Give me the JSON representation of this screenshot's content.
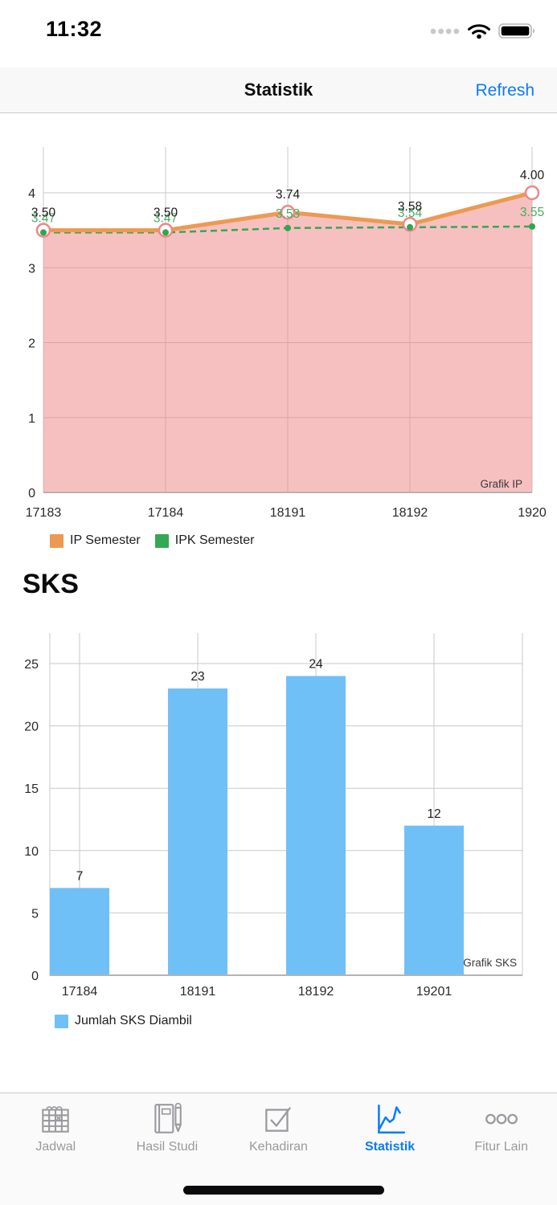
{
  "status_bar": {
    "time": "11:32"
  },
  "nav_bar": {
    "title": "Statistik",
    "refresh_label": "Refresh"
  },
  "sections": {
    "sks_heading": "SKS"
  },
  "colors": {
    "accent_blue": "#0A7AFF",
    "tab_inactive": "#9A9A9F",
    "gridline": "#C9C9C9",
    "axis_line": "#B3B3B3",
    "tick_text": "#2A2A2C",
    "value_label": "#1B1B1D",
    "watermark_text": "#39393B"
  },
  "chart_data": [
    {
      "type": "line",
      "name": "grafik-ip",
      "categories": [
        "17183",
        "17184",
        "18191",
        "18192",
        "1920"
      ],
      "series": [
        {
          "name": "IP Semester",
          "color": "#EC9A52",
          "line_style": "solid",
          "point_style": "ring",
          "ring_stroke": "#EE8787",
          "area_fill": "rgba(240,129,129,0.5)",
          "values": [
            3.5,
            3.5,
            3.74,
            3.58,
            4.0
          ],
          "value_labels": [
            "3.50",
            "3.50",
            "3.74",
            "3.58",
            "4.00"
          ],
          "label_color": "#1B1B1D"
        },
        {
          "name": "IPK Semester",
          "color": "#34A853",
          "line_style": "dashed",
          "point_style": "dot",
          "dot_color": "#2FA750",
          "values": [
            3.47,
            3.47,
            3.53,
            3.54,
            3.55
          ],
          "value_labels": [
            "3.47",
            "3.47",
            "3.53",
            "3.54",
            "3.55"
          ],
          "label_color": "#43AE60"
        }
      ],
      "yticks": [
        0,
        1,
        2,
        3,
        4
      ],
      "ylim": [
        0,
        4.6
      ],
      "grid": true,
      "legend_position": "bottom",
      "watermark": "Grafik IP"
    },
    {
      "type": "bar",
      "name": "grafik-sks",
      "categories": [
        "17184",
        "18191",
        "18192",
        "19201"
      ],
      "series": [
        {
          "name": "Jumlah SKS Diambil",
          "color": "#6FC0F7",
          "values": [
            7,
            23,
            24,
            12
          ],
          "value_labels": [
            "7",
            "23",
            "24",
            "12"
          ],
          "label_color": "#1B1B1D"
        }
      ],
      "yticks": [
        0,
        5,
        10,
        15,
        20,
        25
      ],
      "ylim": [
        0,
        27.4
      ],
      "grid": true,
      "legend_position": "bottom",
      "watermark": "Grafik SKS"
    }
  ],
  "tab_bar": {
    "items": [
      {
        "label": "Jadwal",
        "icon": "calendar-icon",
        "active": false
      },
      {
        "label": "Hasil Studi",
        "icon": "notebook-pencil-icon",
        "active": false
      },
      {
        "label": "Kehadiran",
        "icon": "checkbox-check-icon",
        "active": false
      },
      {
        "label": "Statistik",
        "icon": "line-chart-icon",
        "active": true
      },
      {
        "label": "Fitur Lain",
        "icon": "ellipsis-circles-icon",
        "active": false
      }
    ]
  }
}
